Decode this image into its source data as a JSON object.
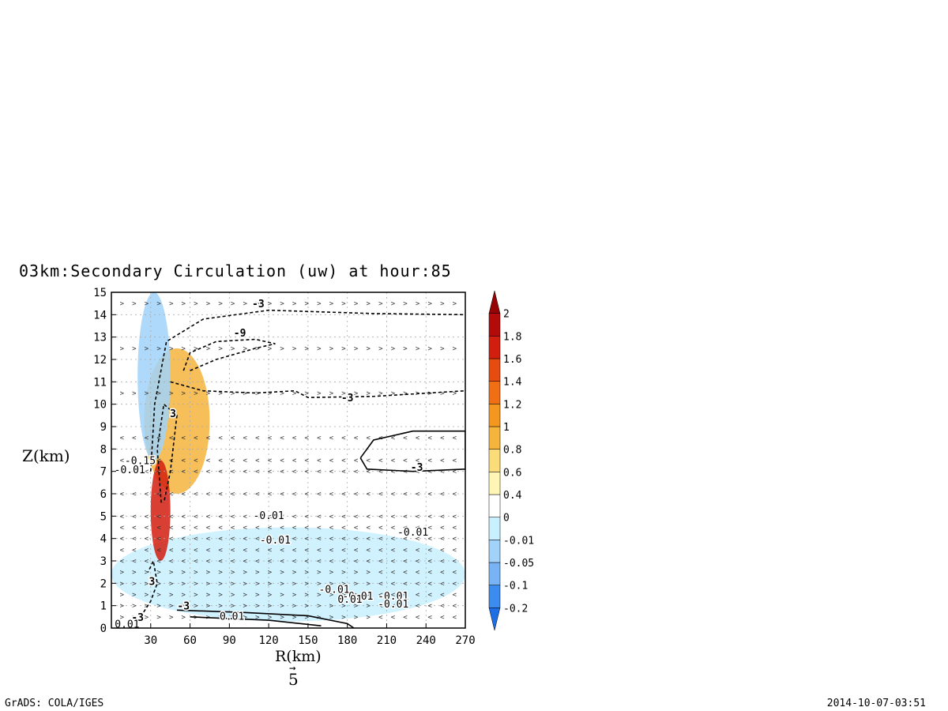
{
  "title": "03km:Secondary Circulation (uw) at hour:85",
  "footer": {
    "left": "GrADS: COLA/IGES",
    "right": "2014-10-07-03:51"
  },
  "vector_reference": {
    "arrow": "→",
    "value": "5"
  },
  "chart_data": {
    "type": "heatmap",
    "title": "03km:Secondary Circulation (uw) at hour:85",
    "xlabel": "R(km)",
    "ylabel": "Z(km)",
    "xlim": [
      0,
      270
    ],
    "ylim": [
      0,
      15
    ],
    "x_ticks": [
      30,
      60,
      90,
      120,
      150,
      180,
      210,
      240,
      270
    ],
    "y_ticks": [
      0,
      1,
      2,
      3,
      4,
      5,
      6,
      7,
      8,
      9,
      10,
      11,
      12,
      13,
      14,
      15
    ],
    "grid": true,
    "colorbar": {
      "levels": [
        "-0.2",
        "-0.1",
        "-0.05",
        "-0.01",
        "0",
        "0.4",
        "0.6",
        "0.8",
        "1",
        "1.2",
        "1.4",
        "1.6",
        "1.8",
        "2"
      ],
      "colors": [
        "#1e6ee6",
        "#3c8cf0",
        "#78b4f5",
        "#a0d2fa",
        "#c8f0ff",
        "#ffffff",
        "#fff5b4",
        "#fadc78",
        "#f5b43c",
        "#f5961e",
        "#f06e14",
        "#e64b0f",
        "#d21e0f",
        "#b40a0a",
        "#960505"
      ],
      "position": "right"
    },
    "contour_labels": [
      "-3",
      "-3",
      "-3",
      "-3",
      "-3",
      "-9",
      "3",
      "3",
      "-0.15",
      "-0.01",
      "-0.01",
      "-0.01",
      "-0.01",
      "-0.01",
      "-0.01",
      "-0.01",
      "-0.01",
      "0.01",
      "0.01",
      "0.01"
    ],
    "shading_regions": [
      {
        "level": "-0.01",
        "r": [
          0,
          270
        ],
        "z": [
          0.3,
          4.5
        ]
      },
      {
        "level": "0.8",
        "r": [
          25,
          75
        ],
        "z": [
          6,
          12.5
        ]
      },
      {
        "level": "1.6",
        "r": [
          30,
          45
        ],
        "z": [
          3,
          7.5
        ]
      },
      {
        "level": "-0.05",
        "r": [
          20,
          45
        ],
        "z": [
          7.5,
          15
        ]
      }
    ]
  }
}
